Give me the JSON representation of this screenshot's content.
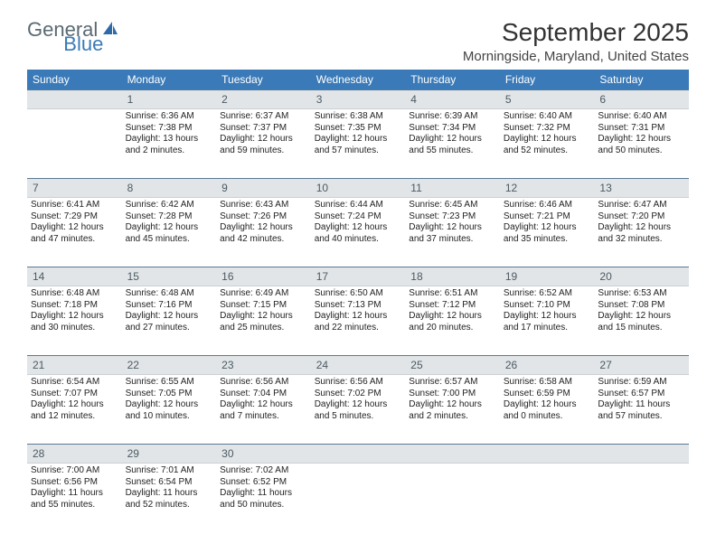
{
  "logo": {
    "general": "General",
    "blue": "Blue"
  },
  "title": "September 2025",
  "location": "Morningside, Maryland, United States",
  "day_names": [
    "Sunday",
    "Monday",
    "Tuesday",
    "Wednesday",
    "Thursday",
    "Friday",
    "Saturday"
  ],
  "colors": {
    "header_bg": "#3a7ab8",
    "header_text": "#ffffff",
    "daynum_bg": "#e2e5e7",
    "daynum_border_top": "#5a7a94",
    "body_text": "#222222",
    "logo_gray": "#5a6a72",
    "logo_blue": "#3a7ab8"
  },
  "weeks": [
    [
      null,
      {
        "n": "1",
        "sr": "Sunrise: 6:36 AM",
        "ss": "Sunset: 7:38 PM",
        "d1": "Daylight: 13 hours",
        "d2": "and 2 minutes."
      },
      {
        "n": "2",
        "sr": "Sunrise: 6:37 AM",
        "ss": "Sunset: 7:37 PM",
        "d1": "Daylight: 12 hours",
        "d2": "and 59 minutes."
      },
      {
        "n": "3",
        "sr": "Sunrise: 6:38 AM",
        "ss": "Sunset: 7:35 PM",
        "d1": "Daylight: 12 hours",
        "d2": "and 57 minutes."
      },
      {
        "n": "4",
        "sr": "Sunrise: 6:39 AM",
        "ss": "Sunset: 7:34 PM",
        "d1": "Daylight: 12 hours",
        "d2": "and 55 minutes."
      },
      {
        "n": "5",
        "sr": "Sunrise: 6:40 AM",
        "ss": "Sunset: 7:32 PM",
        "d1": "Daylight: 12 hours",
        "d2": "and 52 minutes."
      },
      {
        "n": "6",
        "sr": "Sunrise: 6:40 AM",
        "ss": "Sunset: 7:31 PM",
        "d1": "Daylight: 12 hours",
        "d2": "and 50 minutes."
      }
    ],
    [
      {
        "n": "7",
        "sr": "Sunrise: 6:41 AM",
        "ss": "Sunset: 7:29 PM",
        "d1": "Daylight: 12 hours",
        "d2": "and 47 minutes."
      },
      {
        "n": "8",
        "sr": "Sunrise: 6:42 AM",
        "ss": "Sunset: 7:28 PM",
        "d1": "Daylight: 12 hours",
        "d2": "and 45 minutes."
      },
      {
        "n": "9",
        "sr": "Sunrise: 6:43 AM",
        "ss": "Sunset: 7:26 PM",
        "d1": "Daylight: 12 hours",
        "d2": "and 42 minutes."
      },
      {
        "n": "10",
        "sr": "Sunrise: 6:44 AM",
        "ss": "Sunset: 7:24 PM",
        "d1": "Daylight: 12 hours",
        "d2": "and 40 minutes."
      },
      {
        "n": "11",
        "sr": "Sunrise: 6:45 AM",
        "ss": "Sunset: 7:23 PM",
        "d1": "Daylight: 12 hours",
        "d2": "and 37 minutes."
      },
      {
        "n": "12",
        "sr": "Sunrise: 6:46 AM",
        "ss": "Sunset: 7:21 PM",
        "d1": "Daylight: 12 hours",
        "d2": "and 35 minutes."
      },
      {
        "n": "13",
        "sr": "Sunrise: 6:47 AM",
        "ss": "Sunset: 7:20 PM",
        "d1": "Daylight: 12 hours",
        "d2": "and 32 minutes."
      }
    ],
    [
      {
        "n": "14",
        "sr": "Sunrise: 6:48 AM",
        "ss": "Sunset: 7:18 PM",
        "d1": "Daylight: 12 hours",
        "d2": "and 30 minutes."
      },
      {
        "n": "15",
        "sr": "Sunrise: 6:48 AM",
        "ss": "Sunset: 7:16 PM",
        "d1": "Daylight: 12 hours",
        "d2": "and 27 minutes."
      },
      {
        "n": "16",
        "sr": "Sunrise: 6:49 AM",
        "ss": "Sunset: 7:15 PM",
        "d1": "Daylight: 12 hours",
        "d2": "and 25 minutes."
      },
      {
        "n": "17",
        "sr": "Sunrise: 6:50 AM",
        "ss": "Sunset: 7:13 PM",
        "d1": "Daylight: 12 hours",
        "d2": "and 22 minutes."
      },
      {
        "n": "18",
        "sr": "Sunrise: 6:51 AM",
        "ss": "Sunset: 7:12 PM",
        "d1": "Daylight: 12 hours",
        "d2": "and 20 minutes."
      },
      {
        "n": "19",
        "sr": "Sunrise: 6:52 AM",
        "ss": "Sunset: 7:10 PM",
        "d1": "Daylight: 12 hours",
        "d2": "and 17 minutes."
      },
      {
        "n": "20",
        "sr": "Sunrise: 6:53 AM",
        "ss": "Sunset: 7:08 PM",
        "d1": "Daylight: 12 hours",
        "d2": "and 15 minutes."
      }
    ],
    [
      {
        "n": "21",
        "sr": "Sunrise: 6:54 AM",
        "ss": "Sunset: 7:07 PM",
        "d1": "Daylight: 12 hours",
        "d2": "and 12 minutes."
      },
      {
        "n": "22",
        "sr": "Sunrise: 6:55 AM",
        "ss": "Sunset: 7:05 PM",
        "d1": "Daylight: 12 hours",
        "d2": "and 10 minutes."
      },
      {
        "n": "23",
        "sr": "Sunrise: 6:56 AM",
        "ss": "Sunset: 7:04 PM",
        "d1": "Daylight: 12 hours",
        "d2": "and 7 minutes."
      },
      {
        "n": "24",
        "sr": "Sunrise: 6:56 AM",
        "ss": "Sunset: 7:02 PM",
        "d1": "Daylight: 12 hours",
        "d2": "and 5 minutes."
      },
      {
        "n": "25",
        "sr": "Sunrise: 6:57 AM",
        "ss": "Sunset: 7:00 PM",
        "d1": "Daylight: 12 hours",
        "d2": "and 2 minutes."
      },
      {
        "n": "26",
        "sr": "Sunrise: 6:58 AM",
        "ss": "Sunset: 6:59 PM",
        "d1": "Daylight: 12 hours",
        "d2": "and 0 minutes."
      },
      {
        "n": "27",
        "sr": "Sunrise: 6:59 AM",
        "ss": "Sunset: 6:57 PM",
        "d1": "Daylight: 11 hours",
        "d2": "and 57 minutes."
      }
    ],
    [
      {
        "n": "28",
        "sr": "Sunrise: 7:00 AM",
        "ss": "Sunset: 6:56 PM",
        "d1": "Daylight: 11 hours",
        "d2": "and 55 minutes."
      },
      {
        "n": "29",
        "sr": "Sunrise: 7:01 AM",
        "ss": "Sunset: 6:54 PM",
        "d1": "Daylight: 11 hours",
        "d2": "and 52 minutes."
      },
      {
        "n": "30",
        "sr": "Sunrise: 7:02 AM",
        "ss": "Sunset: 6:52 PM",
        "d1": "Daylight: 11 hours",
        "d2": "and 50 minutes."
      },
      null,
      null,
      null,
      null
    ]
  ]
}
